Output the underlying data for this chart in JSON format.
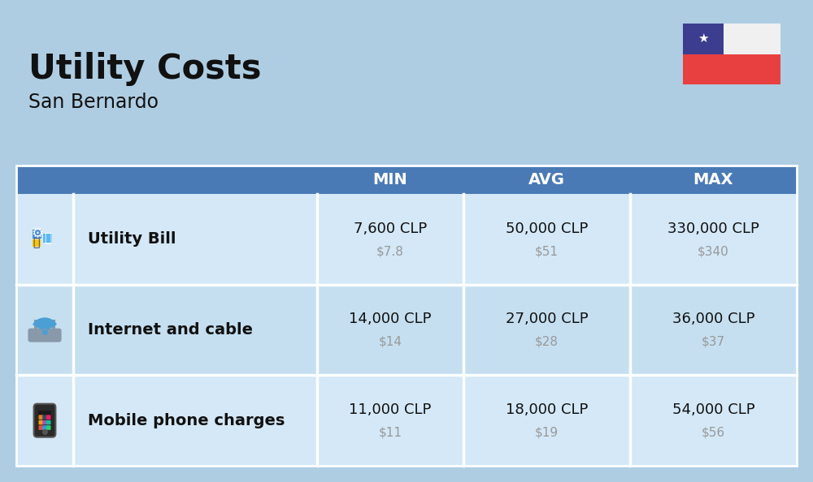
{
  "title": "Utility Costs",
  "subtitle": "San Bernardo",
  "background_color": "#aecde3",
  "header_bg_color": "#4a7ab5",
  "header_text_color": "#ffffff",
  "row_bg_color_1": "#d4e8f7",
  "row_bg_color_2": "#c5dff0",
  "label_color": "#111111",
  "value_color": "#111111",
  "subvalue_color": "#999999",
  "divider_color": "#ffffff",
  "columns": [
    "MIN",
    "AVG",
    "MAX"
  ],
  "rows": [
    {
      "label": "Utility Bill",
      "min_clp": "7,600 CLP",
      "min_usd": "$7.8",
      "avg_clp": "50,000 CLP",
      "avg_usd": "$51",
      "max_clp": "330,000 CLP",
      "max_usd": "$340"
    },
    {
      "label": "Internet and cable",
      "min_clp": "14,000 CLP",
      "min_usd": "$14",
      "avg_clp": "27,000 CLP",
      "avg_usd": "$28",
      "max_clp": "36,000 CLP",
      "max_usd": "$37"
    },
    {
      "label": "Mobile phone charges",
      "min_clp": "11,000 CLP",
      "min_usd": "$11",
      "avg_clp": "18,000 CLP",
      "avg_usd": "$19",
      "max_clp": "54,000 CLP",
      "max_usd": "$56"
    }
  ],
  "flag": {
    "white": "#f0f0f0",
    "red": "#e84040",
    "blue": "#3d3d8f"
  }
}
